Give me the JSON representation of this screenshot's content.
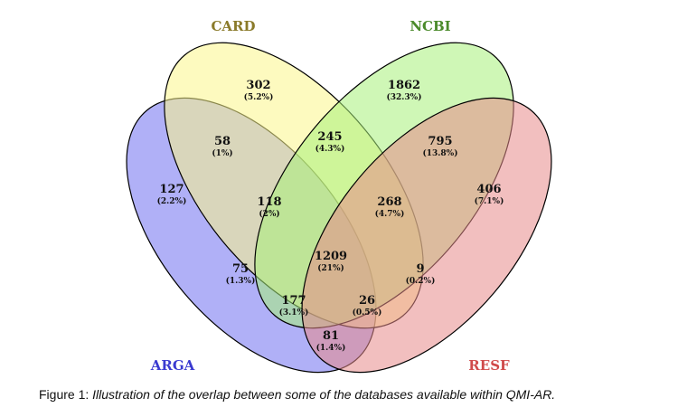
{
  "diagram": {
    "sets": [
      {
        "key": "ARGA",
        "label": "ARGA",
        "fill": "#6f6ff0",
        "text_color": "#3a3ad0"
      },
      {
        "key": "CARD",
        "label": "CARD",
        "fill": "#fbf58a",
        "text_color": "#8a7a2a"
      },
      {
        "key": "NCBI",
        "label": "NCBI",
        "fill": "#a8f07a",
        "text_color": "#4a8a2a"
      },
      {
        "key": "RESF",
        "label": "RESF",
        "fill": "#e88a8a",
        "text_color": "#d04a4a"
      }
    ],
    "regions": [
      {
        "id": "arga-only",
        "count": "127",
        "percent": "(2.2%)"
      },
      {
        "id": "card-only",
        "count": "302",
        "percent": "(5.2%)"
      },
      {
        "id": "ncbi-only",
        "count": "1862",
        "percent": "(32.3%)"
      },
      {
        "id": "resf-only",
        "count": "406",
        "percent": "(7.1%)"
      },
      {
        "id": "arga-card",
        "count": "58",
        "percent": "(1%)"
      },
      {
        "id": "card-ncbi",
        "count": "245",
        "percent": "(4.3%)"
      },
      {
        "id": "ncbi-resf",
        "count": "795",
        "percent": "(13.8%)"
      },
      {
        "id": "arga-card-ncbi",
        "count": "118",
        "percent": "(2%)"
      },
      {
        "id": "card-ncbi-resf",
        "count": "268",
        "percent": "(4.7%)"
      },
      {
        "id": "all-four",
        "count": "1209",
        "percent": "(21%)"
      },
      {
        "id": "arga-ncbi",
        "count": "75",
        "percent": "(1.3%)"
      },
      {
        "id": "card-resf",
        "count": "9",
        "percent": "(0.2%)"
      },
      {
        "id": "arga-ncbi-resf",
        "count": "177",
        "percent": "(3.1%)"
      },
      {
        "id": "arga-card-resf",
        "count": "26",
        "percent": "(0.5%)"
      },
      {
        "id": "arga-resf",
        "count": "81",
        "percent": "(1.4%)"
      }
    ]
  },
  "caption": {
    "lead": "Figure 1: ",
    "body": "Illustration of the overlap between some of the databases available within QMI-AR."
  }
}
